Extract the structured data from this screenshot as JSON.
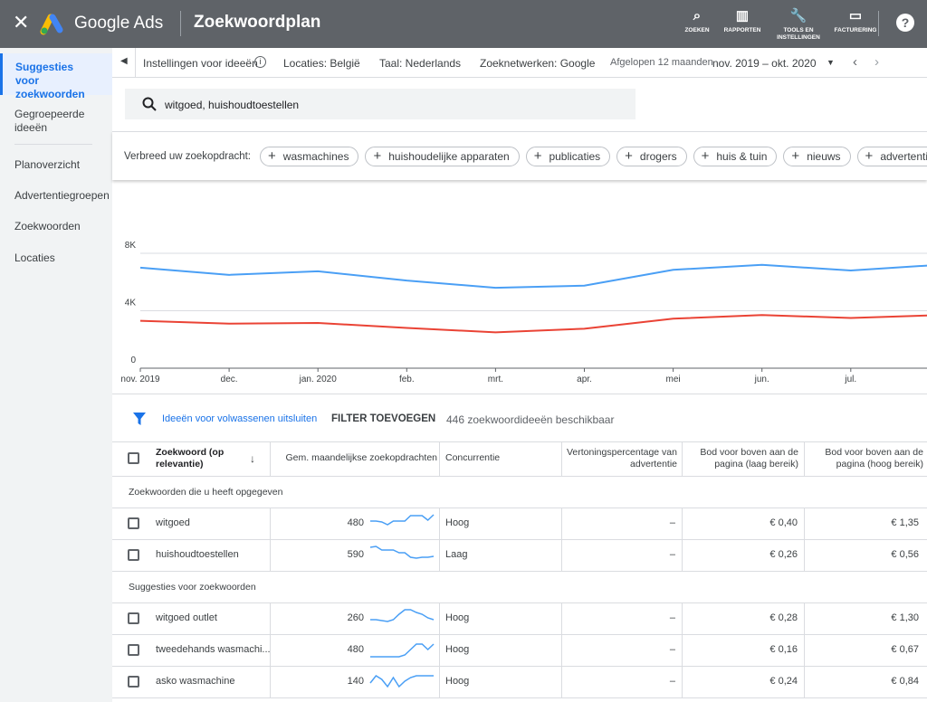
{
  "header": {
    "brand": "Google Ads",
    "title": "Zoekwoordplan",
    "nav": [
      "ZOEKEN",
      "RAPPORTEN",
      "TOOLS EN INSTELLINGEN",
      "FACTURERING"
    ]
  },
  "sidebar": [
    "Suggesties voor zoekwoorden",
    "Gegroepeerde ideeën",
    "Planoverzicht",
    "Advertentiegroepen",
    "Zoekwoorden",
    "Locaties"
  ],
  "settings": {
    "ideas": "Instellingen voor ideeën",
    "locations": "Locaties: België",
    "language": "Taal: Nederlands",
    "networks": "Zoeknetwerken: Google",
    "period_label": "Afgelopen 12 maanden",
    "period": "nov. 2019 – okt. 2020"
  },
  "search": "witgoed, huishoudtoestellen",
  "broaden": {
    "label": "Verbreed uw zoekopdracht:",
    "chips": [
      "wasmachines",
      "huishoudelijke apparaten",
      "publicaties",
      "drogers",
      "huis & tuin",
      "nieuws",
      "advertenties"
    ]
  },
  "chart_data": {
    "type": "line",
    "categories": [
      "nov. 2019",
      "dec.",
      "jan. 2020",
      "feb.",
      "mrt.",
      "apr.",
      "mei",
      "jun.",
      "jul.",
      null
    ],
    "series": [
      {
        "color": "#4a9ff5",
        "values": [
          7000,
          6500,
          6750,
          6100,
          5600,
          5750,
          6850,
          7200,
          6800,
          7200
        ]
      },
      {
        "color": "#ea4335",
        "values": [
          3300,
          3100,
          3150,
          2800,
          2500,
          2750,
          3450,
          3700,
          3500,
          3700
        ]
      }
    ],
    "ylim": [
      0,
      8000
    ],
    "yticks": [
      0,
      {
        "value": 4000,
        "label": "4K"
      },
      {
        "value": 8000,
        "label": "8K"
      }
    ],
    "grid": true
  },
  "filter": {
    "mature": "Ideeën voor volwassenen uitsluiten",
    "add": "FILTER TOEVOEGEN",
    "count": "446 zoekwoordideeën beschikbaar"
  },
  "table": {
    "columns": [
      "Zoekwoord (op relevantie)",
      "Gem. maandelijkse zoekopdrachten",
      "Concurrentie",
      "Vertoningspercentage van advertentie",
      "Bod voor boven aan de pagina (laag bereik)",
      "Bod voor boven aan de pagina (hoog bereik)"
    ],
    "groups": [
      {
        "name": "Zoekwoorden die u heeft opgegeven",
        "rows": [
          {
            "keyword": "witgoed",
            "searches": 480,
            "trend": [
              60,
              60,
              55,
              40,
              60,
              60,
              60,
              90,
              90,
              90,
              65,
              95
            ],
            "competition": "Hoog",
            "impression_share": "–",
            "bid_low": "€ 0,40",
            "bid_high": "€ 1,35"
          },
          {
            "keyword": "huishoudtoestellen",
            "searches": 590,
            "trend": [
              90,
              95,
              75,
              75,
              75,
              60,
              60,
              35,
              30,
              35,
              35,
              40
            ],
            "competition": "Laag",
            "impression_share": "–",
            "bid_low": "€ 0,26",
            "bid_high": "€ 0,56"
          }
        ]
      },
      {
        "name": "Suggesties voor zoekwoorden",
        "rows": [
          {
            "keyword": "witgoed outlet",
            "searches": 260,
            "trend": [
              40,
              40,
              35,
              30,
              40,
              70,
              95,
              95,
              80,
              70,
              50,
              40
            ],
            "competition": "Hoog",
            "impression_share": "–",
            "bid_low": "€ 0,28",
            "bid_high": "€ 1,30"
          },
          {
            "keyword": "tweedehands wasmachi...",
            "searches": 480,
            "trend": [
              10,
              10,
              10,
              10,
              10,
              10,
              20,
              50,
              80,
              80,
              50,
              80
            ],
            "competition": "Hoog",
            "impression_share": "–",
            "bid_low": "€ 0,16",
            "bid_high": "€ 0,67"
          },
          {
            "keyword": "asko wasmachine",
            "searches": 140,
            "trend": [
              40,
              80,
              60,
              20,
              70,
              20,
              50,
              70,
              80,
              80,
              80,
              80
            ],
            "competition": "Hoog",
            "impression_share": "–",
            "bid_low": "€ 0,24",
            "bid_high": "€ 0,84"
          }
        ]
      }
    ]
  }
}
